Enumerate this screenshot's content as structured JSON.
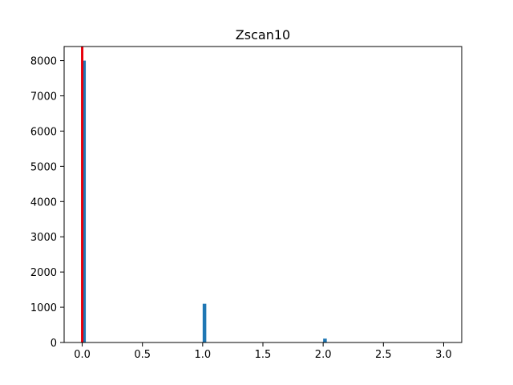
{
  "chart_data": {
    "type": "bar",
    "title": "Zscan10",
    "xlabel": "",
    "ylabel": "",
    "xlim": [
      -0.15,
      3.15
    ],
    "ylim": [
      0,
      8400
    ],
    "x_ticks": [
      0.0,
      0.5,
      1.0,
      1.5,
      2.0,
      2.5,
      3.0
    ],
    "x_tick_labels": [
      "0.0",
      "0.5",
      "1.0",
      "1.5",
      "2.0",
      "2.5",
      "3.0"
    ],
    "y_ticks": [
      0,
      1000,
      2000,
      3000,
      4000,
      5000,
      6000,
      7000,
      8000
    ],
    "y_tick_labels": [
      "0",
      "1000",
      "2000",
      "3000",
      "4000",
      "5000",
      "6000",
      "7000",
      "8000"
    ],
    "bar_width": 0.03,
    "bars": [
      {
        "x": 0.0,
        "value": 8000
      },
      {
        "x": 1.0,
        "value": 1100
      },
      {
        "x": 2.0,
        "value": 110
      }
    ],
    "vline": {
      "x": 0.0
    },
    "grid": false,
    "colors": {
      "bar": "#1f77b4",
      "vline": "#e8000b",
      "axis": "#000000"
    }
  }
}
